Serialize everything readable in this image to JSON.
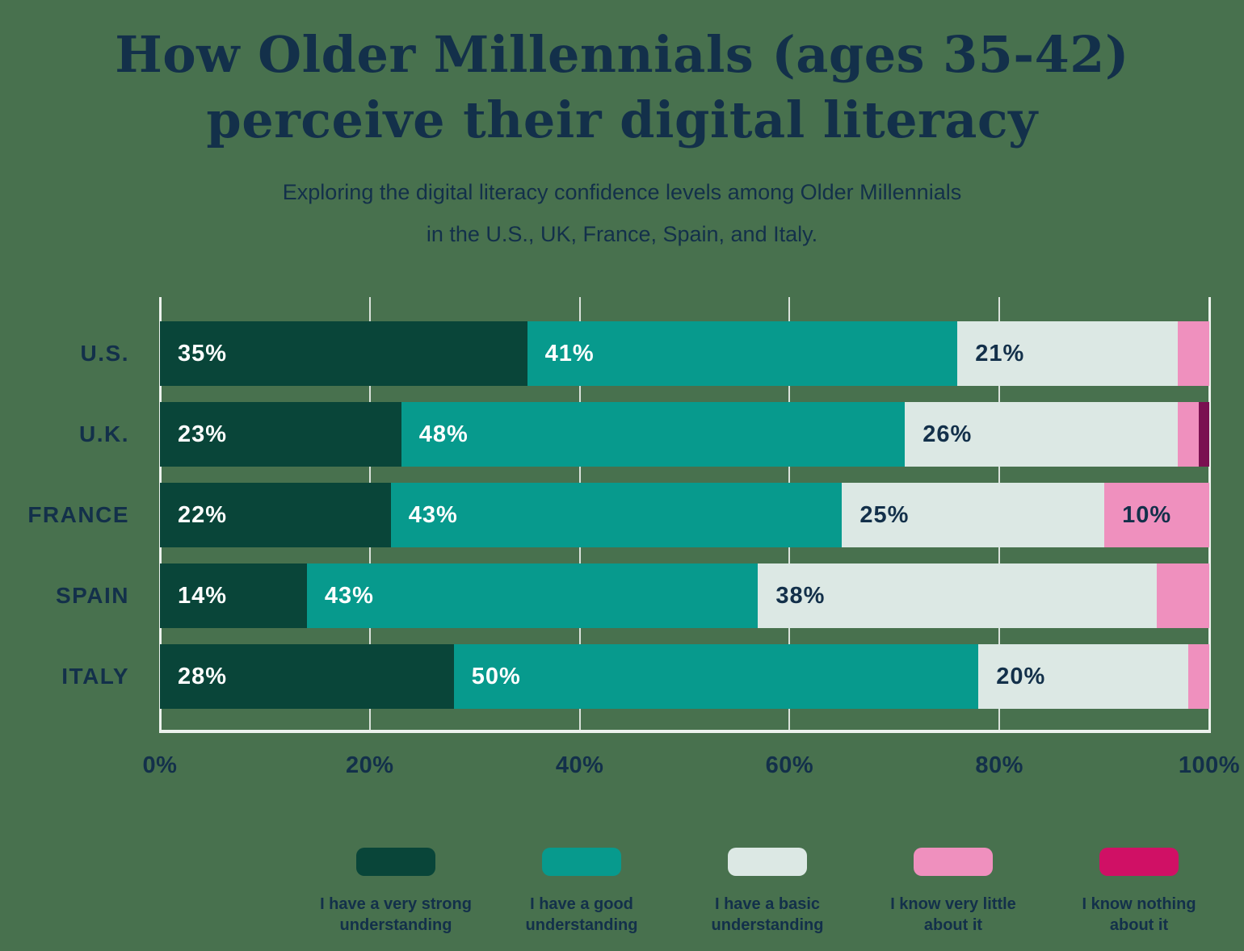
{
  "title": "How Older Millennials (ages 35-42)\nperceive their digital literacy",
  "subtitle": "Exploring the digital literacy confidence levels among Older Millennials\nin the U.S., UK, France, Spain, and Italy.",
  "colors": {
    "background": "#48714E",
    "text_navy": "#13304A",
    "gridline": "rgba(255,255,255,0.8)",
    "axis_frame": "#ECF2ED"
  },
  "chart_data": {
    "type": "bar",
    "orientation": "horizontal",
    "stacked": true,
    "title": "How Older Millennials (ages 35-42) perceive their digital literacy",
    "subtitle": "Exploring the digital literacy confidence levels among Older Millennials in the U.S., UK, France, Spain, and Italy.",
    "categories": [
      "U.S.",
      "U.K.",
      "FRANCE",
      "SPAIN",
      "ITALY"
    ],
    "series": [
      {
        "name": "I have a very strong understanding",
        "legend_label": "I have a very strong\nunderstanding",
        "color": "#094539",
        "legend_color": "#094539",
        "label_color": "#FFFFFF",
        "values": [
          35,
          23,
          22,
          14,
          28
        ]
      },
      {
        "name": "I have a good understanding",
        "legend_label": "I have a good\nunderstanding",
        "color": "#079A8D",
        "legend_color": "#079A8D",
        "label_color": "#FFFFFF",
        "values": [
          41,
          48,
          43,
          43,
          50
        ]
      },
      {
        "name": "I have a basic understanding",
        "legend_label": "I have a basic\nunderstanding",
        "color": "#DCE8E4",
        "legend_color": "#DCE8E4",
        "label_color": "#13304A",
        "values": [
          21,
          26,
          25,
          38,
          20
        ]
      },
      {
        "name": "I know very little about it",
        "legend_label": "I know very little\nabout it",
        "color": "#EF90BE",
        "legend_color": "#EF90BE",
        "label_color": "#13304A",
        "values": [
          3,
          2,
          10,
          5,
          2
        ]
      },
      {
        "name": "I know nothing about it",
        "legend_label": "I know nothing\nabout it",
        "color": "#7A1051",
        "legend_color": "#D01065",
        "label_color": "#FFFFFF",
        "values": [
          0,
          1,
          0,
          0,
          0
        ]
      }
    ],
    "x_ticks": [
      "0%",
      "20%",
      "40%",
      "60%",
      "80%",
      "100%"
    ],
    "x_tick_values": [
      0,
      20,
      40,
      60,
      80,
      100
    ],
    "xlim": [
      0,
      100
    ],
    "xlabel": "",
    "ylabel": "",
    "value_suffix": "%",
    "min_label_value": 10,
    "grid": true,
    "legend_position": "bottom"
  }
}
